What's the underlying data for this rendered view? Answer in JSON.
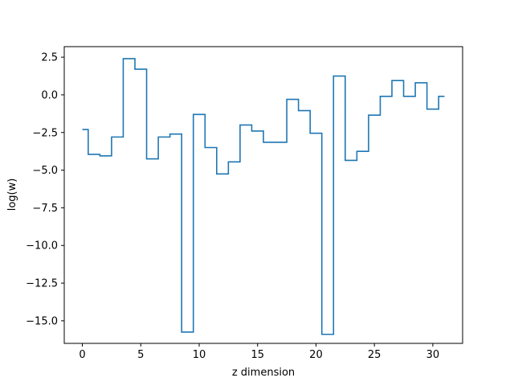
{
  "chart_data": {
    "type": "line",
    "drawstyle": "steps-mid",
    "xlabel": "z dimension",
    "ylabel": "log(w)",
    "xlim": [
      -1.55,
      32.55
    ],
    "ylim": [
      -16.5,
      3.2
    ],
    "xticks": [
      0,
      5,
      10,
      15,
      20,
      25,
      30
    ],
    "xtick_labels": [
      "0",
      "5",
      "10",
      "15",
      "20",
      "25",
      "30"
    ],
    "yticks": [
      2.5,
      0.0,
      -2.5,
      -5.0,
      -7.5,
      -10.0,
      -12.5,
      -15.0
    ],
    "ytick_labels": [
      "2.5",
      "0.0",
      "−2.5",
      "−5.0",
      "−7.5",
      "−10.0",
      "−12.5",
      "−15.0"
    ],
    "grid": false,
    "legend": "none",
    "series": [
      {
        "color": "#1f77b4",
        "x": [
          0,
          1,
          2,
          3,
          4,
          5,
          6,
          7,
          8,
          9,
          10,
          11,
          12,
          13,
          14,
          15,
          16,
          17,
          18,
          19,
          20,
          21,
          22,
          23,
          24,
          25,
          26,
          27,
          28,
          29,
          30,
          31
        ],
        "values": [
          -2.3,
          -3.95,
          -4.05,
          -2.8,
          2.4,
          1.7,
          -4.25,
          -2.8,
          -2.6,
          -15.75,
          -1.3,
          -3.5,
          -5.25,
          -4.45,
          -2.0,
          -2.4,
          -3.15,
          -3.15,
          -0.3,
          -1.05,
          -2.55,
          -15.9,
          1.25,
          -4.35,
          -3.75,
          -1.35,
          -0.1,
          0.95,
          -0.1,
          0.8,
          -0.95,
          -0.1
        ]
      }
    ]
  }
}
